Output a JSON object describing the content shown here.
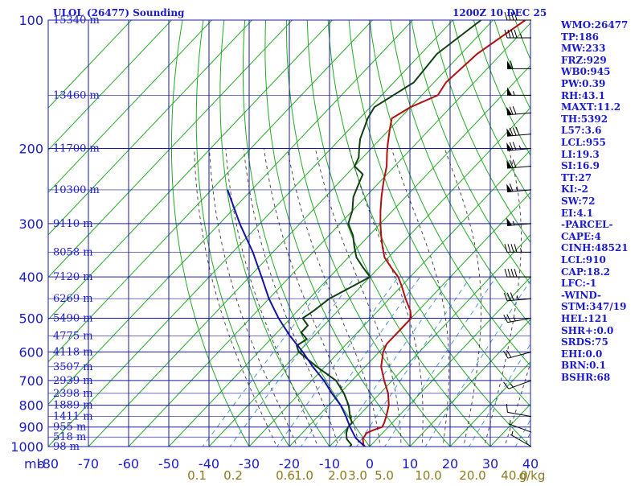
{
  "header": {
    "station": "ULOL (26477) Sounding",
    "datetime": "1200Z 10 DEC 25"
  },
  "stats": [
    "WMO:26477",
    "TP:186",
    "MW:233",
    "FRZ:929",
    "WB0:945",
    "PW:0.39",
    "RH:43.1",
    "MAXT:11.2",
    "TH:5392",
    "L57:3.6",
    "LCL:955",
    "LI:19.3",
    "SI:16.9",
    "TT:27",
    "KI:-2",
    "SW:72",
    "EI:4.1",
    "-PARCEL-",
    "CAPE:4",
    "CINH:48521",
    "LCL:910",
    "CAP:18.2",
    "LFC:-1",
    "-WIND-",
    "STM:347/19",
    "HEL:121",
    "SHR+:0.0",
    "SRDS:75",
    "EHI:0.0",
    "BRN:0.1",
    "BSHR:68"
  ],
  "chart_data": {
    "type": "line",
    "subtype": "skew-T log-P sounding",
    "xlabel": "mb",
    "xunit": "°C",
    "ylim": [
      1000,
      100
    ],
    "xlim": [
      -80,
      40
    ],
    "y_log_scale": true,
    "grid": true,
    "pressure_ticks": [
      100,
      200,
      300,
      400,
      500,
      600,
      700,
      800,
      900,
      1000
    ],
    "pressure_tick_labels": [
      "100",
      "200",
      "300",
      "400",
      "500",
      "600",
      "700",
      "800",
      "900",
      "1000"
    ],
    "temp_ticks": [
      -80,
      -70,
      -60,
      -50,
      -40,
      -30,
      -20,
      -10,
      0,
      10,
      20,
      30,
      40
    ],
    "temp_tick_labels": [
      "-80",
      "-70",
      "-60",
      "-50",
      "-40",
      "-30",
      "-20",
      "-10",
      "0",
      "10",
      "20",
      "30",
      "40"
    ],
    "height_labels": [
      {
        "p": 100,
        "text": "15340 m"
      },
      {
        "p": 150,
        "text": "13460 m"
      },
      {
        "p": 200,
        "text": "11700 m"
      },
      {
        "p": 250,
        "text": "10300 m"
      },
      {
        "p": 300,
        "text": "9110 m"
      },
      {
        "p": 350,
        "text": "8058 m"
      },
      {
        "p": 400,
        "text": "7120 m"
      },
      {
        "p": 450,
        "text": "6269 m"
      },
      {
        "p": 500,
        "text": "5490 m"
      },
      {
        "p": 550,
        "text": "4775 m"
      },
      {
        "p": 600,
        "text": "4118 m"
      },
      {
        "p": 650,
        "text": "3507 m"
      },
      {
        "p": 700,
        "text": "2939 m"
      },
      {
        "p": 750,
        "text": "2398 m"
      },
      {
        "p": 800,
        "text": "1889 m"
      },
      {
        "p": 850,
        "text": "1411 m"
      },
      {
        "p": 900,
        "text": "955 m"
      },
      {
        "p": 950,
        "text": "518 m"
      },
      {
        "p": 1000,
        "text": "98 m"
      }
    ],
    "mixing_ratio_labels": [
      "0.1",
      "0.2",
      "0.6",
      "1.0",
      "2.0",
      "3.0",
      "5.0",
      "10.0",
      "20.0",
      "40.0",
      "g/kg"
    ],
    "mixing_ratio_values": [
      0.1,
      0.2,
      0.6,
      1.0,
      2.0,
      3.0,
      5.0,
      10.0,
      20.0,
      40.0
    ],
    "series": [
      {
        "role": "temperature",
        "color": "#b01010",
        "points": [
          [
            1009,
            -0.4
          ],
          [
            990,
            -2
          ],
          [
            960,
            -3.5
          ],
          [
            930,
            -4
          ],
          [
            915,
            -3
          ],
          [
            900,
            -1.5
          ],
          [
            880,
            -2
          ],
          [
            850,
            -3
          ],
          [
            800,
            -5
          ],
          [
            750,
            -8
          ],
          [
            700,
            -12
          ],
          [
            650,
            -16
          ],
          [
            600,
            -19
          ],
          [
            575,
            -20
          ],
          [
            550,
            -20
          ],
          [
            520,
            -20
          ],
          [
            500,
            -20
          ],
          [
            480,
            -22
          ],
          [
            450,
            -26
          ],
          [
            420,
            -30
          ],
          [
            400,
            -33
          ],
          [
            380,
            -37
          ],
          [
            360,
            -41
          ],
          [
            340,
            -44
          ],
          [
            320,
            -47
          ],
          [
            300,
            -50
          ],
          [
            280,
            -53
          ],
          [
            260,
            -56
          ],
          [
            240,
            -59
          ],
          [
            220,
            -62
          ],
          [
            205,
            -65
          ],
          [
            195,
            -67
          ],
          [
            180,
            -70
          ],
          [
            170,
            -72
          ],
          [
            160,
            -70
          ],
          [
            150,
            -66
          ],
          [
            140,
            -67
          ],
          [
            120,
            -66
          ],
          [
            100,
            -62
          ]
        ]
      },
      {
        "role": "dewpoint",
        "color": "#104010",
        "points": [
          [
            1009,
            -4.9
          ],
          [
            990,
            -5
          ],
          [
            960,
            -7.5
          ],
          [
            930,
            -9
          ],
          [
            900,
            -10
          ],
          [
            880,
            -10
          ],
          [
            850,
            -12
          ],
          [
            800,
            -15
          ],
          [
            750,
            -19
          ],
          [
            700,
            -24
          ],
          [
            650,
            -32
          ],
          [
            600,
            -40
          ],
          [
            580,
            -42
          ],
          [
            560,
            -41
          ],
          [
            540,
            -44
          ],
          [
            520,
            -44
          ],
          [
            500,
            -47
          ],
          [
            480,
            -46
          ],
          [
            450,
            -45
          ],
          [
            420,
            -42
          ],
          [
            400,
            -40
          ],
          [
            380,
            -44
          ],
          [
            360,
            -48
          ],
          [
            340,
            -51
          ],
          [
            320,
            -54
          ],
          [
            300,
            -58
          ],
          [
            280,
            -60
          ],
          [
            260,
            -63
          ],
          [
            240,
            -65
          ],
          [
            230,
            -66
          ],
          [
            220,
            -70
          ],
          [
            210,
            -71
          ],
          [
            200,
            -73
          ],
          [
            190,
            -75
          ],
          [
            170,
            -78
          ],
          [
            160,
            -79
          ],
          [
            140,
            -75
          ],
          [
            120,
            -76
          ],
          [
            100,
            -73
          ]
        ]
      },
      {
        "role": "parcel",
        "color": "#1414a0",
        "points": [
          [
            1009,
            -0.4
          ],
          [
            955,
            -5.5
          ],
          [
            900,
            -9.5
          ],
          [
            850,
            -13
          ],
          [
            800,
            -17
          ],
          [
            750,
            -22
          ],
          [
            700,
            -27
          ],
          [
            650,
            -33
          ],
          [
            600,
            -39
          ],
          [
            550,
            -46
          ],
          [
            500,
            -53
          ],
          [
            450,
            -60
          ],
          [
            400,
            -67
          ],
          [
            350,
            -75
          ],
          [
            300,
            -85
          ],
          [
            250,
            -96
          ]
        ]
      }
    ],
    "wind_barbs": [
      {
        "p": 1000,
        "dir": 300,
        "spd": 3
      },
      {
        "p": 925,
        "dir": 290,
        "spd": 5
      },
      {
        "p": 850,
        "dir": 280,
        "spd": 10
      },
      {
        "p": 700,
        "dir": 250,
        "spd": 15
      },
      {
        "p": 600,
        "dir": 255,
        "spd": 18
      },
      {
        "p": 500,
        "dir": 260,
        "spd": 25
      },
      {
        "p": 450,
        "dir": 265,
        "spd": 35
      },
      {
        "p": 400,
        "dir": 270,
        "spd": 40
      },
      {
        "p": 350,
        "dir": 270,
        "spd": 45
      },
      {
        "p": 300,
        "dir": 265,
        "spd": 55
      },
      {
        "p": 250,
        "dir": 265,
        "spd": 65
      },
      {
        "p": 220,
        "dir": 265,
        "spd": 70
      },
      {
        "p": 200,
        "dir": 265,
        "spd": 75
      },
      {
        "p": 185,
        "dir": 265,
        "spd": 80
      },
      {
        "p": 165,
        "dir": 265,
        "spd": 70
      },
      {
        "p": 150,
        "dir": 270,
        "spd": 55
      },
      {
        "p": 130,
        "dir": 270,
        "spd": 60
      },
      {
        "p": 110,
        "dir": 270,
        "spd": 45
      },
      {
        "p": 100,
        "dir": 270,
        "spd": 40
      }
    ]
  },
  "colors": {
    "grid": "#1a1aa0",
    "isotherm": "#22aa22",
    "dry_adiabat": "#22aa22",
    "moist_adiabat": "#3a3a3a",
    "mixing_ratio": "#3f8fd0",
    "label_blue": "#1a1acc",
    "label_brown": "#8a7a20"
  }
}
